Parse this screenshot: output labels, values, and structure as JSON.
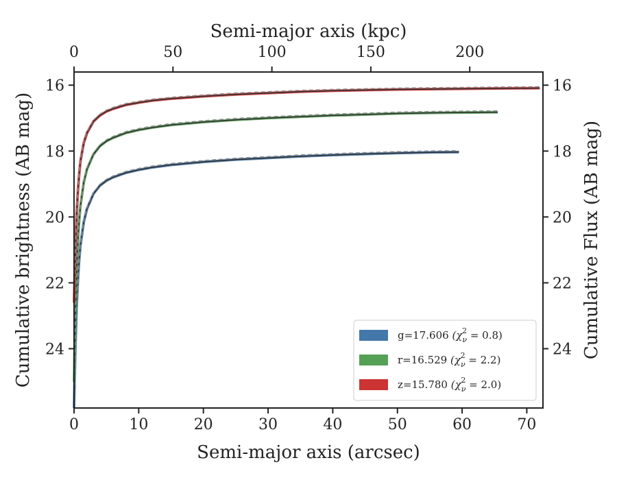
{
  "chart_data": {
    "type": "line",
    "xlabel": "Semi-major axis (arcsec)",
    "xlabel_top": "Semi-major axis (kpc)",
    "ylabel": "Cumulative brightness (AB mag)",
    "ylabel_right": "Cumulative Flux (AB mag)",
    "xlim": [
      0,
      72.5
    ],
    "ylim": [
      25.8,
      15.6
    ],
    "y_inverted": true,
    "xlim_top": [
      0,
      237
    ],
    "xticks": [
      "0",
      "10",
      "20",
      "30",
      "40",
      "50",
      "60",
      "70"
    ],
    "xticks_top": [
      "0",
      "50",
      "100",
      "150",
      "200"
    ],
    "yticks": [
      "16",
      "18",
      "20",
      "22",
      "24"
    ],
    "grid": false,
    "legend_position": "lower right",
    "legend": [
      {
        "label": "g=17.606",
        "chi_label": "(χ",
        "chi_sub": "ν",
        "chi_sup": "2",
        "chi_value": " = 0.8)"
      },
      {
        "label": "r=16.529",
        "chi_label": "(χ",
        "chi_sub": "ν",
        "chi_sup": "2",
        "chi_value": " = 2.2)"
      },
      {
        "label": "z=15.780",
        "chi_label": "(χ",
        "chi_sub": "ν",
        "chi_sup": "2",
        "chi_value": " = 2.0)"
      }
    ],
    "series": [
      {
        "band": "g",
        "color": "#4477aa",
        "x": [
          0,
          0.1,
          0.2,
          0.4,
          0.6,
          0.8,
          1,
          1.5,
          2,
          3,
          4,
          5,
          6,
          8,
          10,
          12,
          15,
          20,
          25,
          30,
          35,
          40,
          45,
          50,
          55,
          59.5
        ],
        "y": [
          25.8,
          24.9,
          24.0,
          22.7,
          21.9,
          21.3,
          20.85,
          20.15,
          19.75,
          19.3,
          19.05,
          18.9,
          18.8,
          18.66,
          18.57,
          18.5,
          18.42,
          18.33,
          18.26,
          18.21,
          18.16,
          18.12,
          18.09,
          18.06,
          18.04,
          18.03
        ]
      },
      {
        "band": "r",
        "color": "#55a055",
        "x": [
          0,
          0.1,
          0.2,
          0.4,
          0.6,
          0.8,
          1,
          1.5,
          2,
          3,
          4,
          5,
          6,
          8,
          10,
          12,
          15,
          20,
          25,
          30,
          35,
          40,
          45,
          50,
          55,
          60,
          65.5
        ],
        "y": [
          25.0,
          24.0,
          23.0,
          21.6,
          20.7,
          20.1,
          19.65,
          18.95,
          18.55,
          18.1,
          17.85,
          17.7,
          17.6,
          17.45,
          17.36,
          17.29,
          17.21,
          17.12,
          17.05,
          17.0,
          16.96,
          16.92,
          16.89,
          16.86,
          16.84,
          16.83,
          16.82
        ]
      },
      {
        "band": "z",
        "color": "#cc3333",
        "x": [
          0,
          0.1,
          0.2,
          0.4,
          0.6,
          0.8,
          1,
          1.5,
          2,
          3,
          4,
          5,
          6,
          8,
          10,
          12,
          15,
          20,
          25,
          30,
          35,
          40,
          45,
          50,
          55,
          60,
          65,
          72
        ],
        "y": [
          22.6,
          21.8,
          21.0,
          19.9,
          19.2,
          18.7,
          18.3,
          17.75,
          17.45,
          17.1,
          16.92,
          16.8,
          16.72,
          16.6,
          16.53,
          16.47,
          16.41,
          16.34,
          16.28,
          16.24,
          16.2,
          16.17,
          16.15,
          16.13,
          16.12,
          16.11,
          16.1,
          16.09
        ]
      }
    ]
  }
}
